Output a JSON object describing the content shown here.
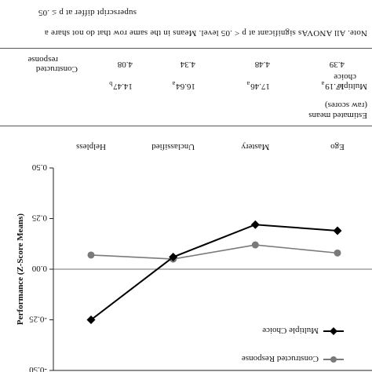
{
  "table": {
    "header_label": "Estimated means",
    "header_sublabel": "(raw scores)",
    "rows": [
      {
        "label_line1": "Multiple",
        "label_line2": "choice",
        "values": [
          "17.19",
          "17.46",
          "16.64",
          "14.47"
        ],
        "subscripts": [
          "a",
          "a",
          "a",
          "b"
        ]
      },
      {
        "label_line1": "Constructed",
        "label_line2": "response",
        "values": [
          "4.39",
          "4.48",
          "4.34",
          "4.08"
        ],
        "subscripts": [
          "",
          "",
          "",
          ""
        ]
      }
    ],
    "note_line1": "Note.  All ANOVAs significant at p < .05 level.  Means in the same row that do not share a",
    "note_line2": "superscript differ at p ≤ .05"
  },
  "chart_data": {
    "type": "line",
    "categories": [
      "Ego",
      "Mastery",
      "Unclassified",
      "Helpless"
    ],
    "ylabel": "Performance (Z-Score Means)",
    "ylim": [
      -0.5,
      0.5
    ],
    "yticks": [
      -0.5,
      -0.25,
      0,
      0.25,
      0.5
    ],
    "ytick_labels": [
      "-0.50",
      "-0.25",
      "0.00",
      "0.25",
      "0.50"
    ],
    "legend_position": "bottom-left",
    "series": [
      {
        "name": "Constructed Response",
        "values": [
          0.08,
          0.12,
          0.05,
          0.07
        ],
        "color": "#7a7a7a",
        "marker": "circle"
      },
      {
        "name": "Multiple Choice",
        "values": [
          0.19,
          0.22,
          0.06,
          -0.25
        ],
        "color": "#000000",
        "marker": "diamond"
      }
    ]
  }
}
